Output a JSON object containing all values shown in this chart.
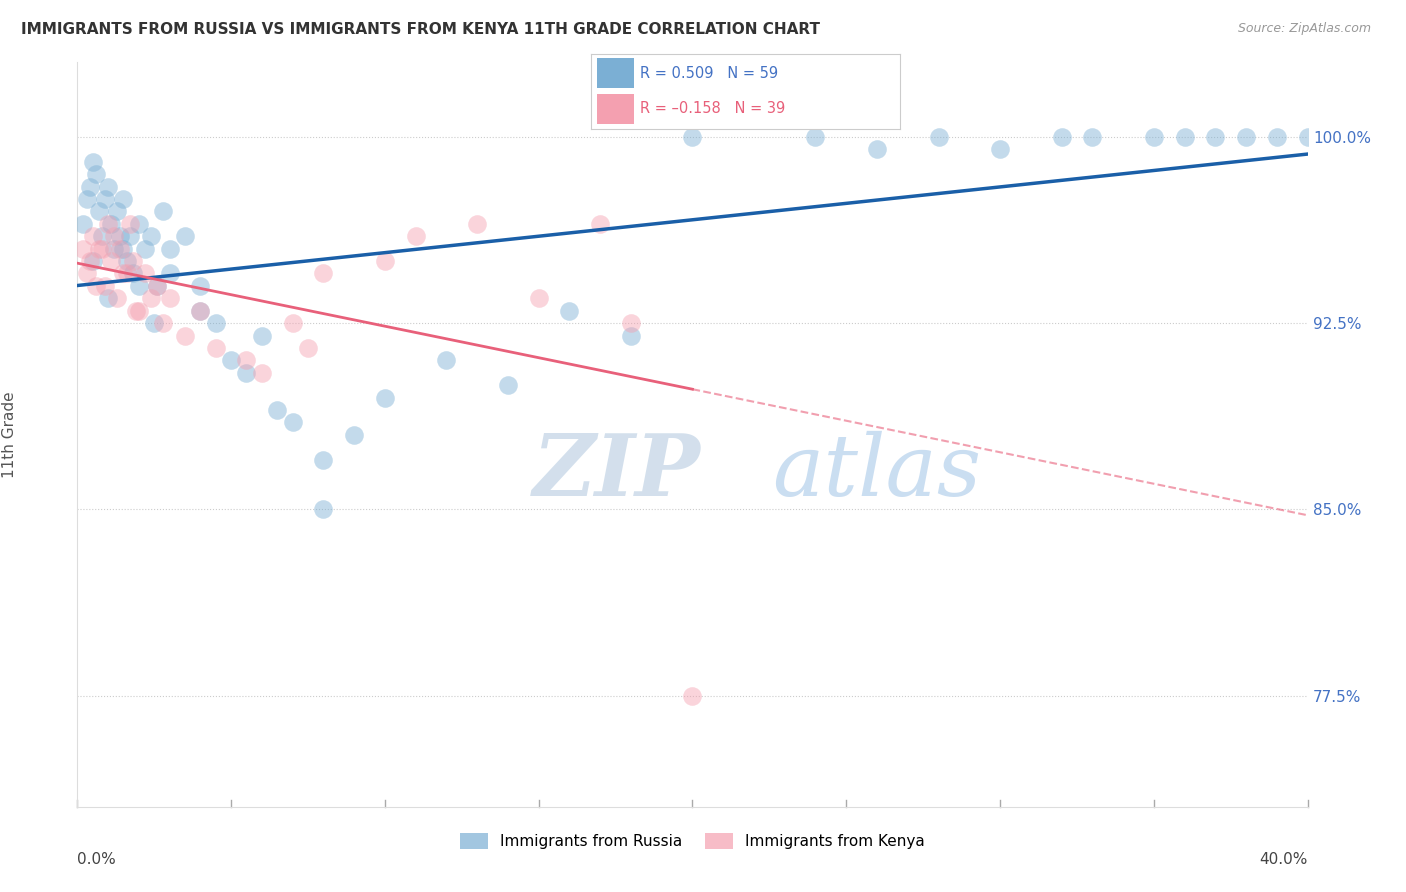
{
  "title": "IMMIGRANTS FROM RUSSIA VS IMMIGRANTS FROM KENYA 11TH GRADE CORRELATION CHART",
  "source": "Source: ZipAtlas.com",
  "ylabel": "11th Grade",
  "y_ticks": [
    77.5,
    85.0,
    92.5,
    100.0
  ],
  "y_tick_labels": [
    "77.5%",
    "85.0%",
    "92.5%",
    "100.0%"
  ],
  "x_range": [
    0.0,
    40.0
  ],
  "y_range": [
    73.0,
    103.0
  ],
  "russia_R": 0.509,
  "russia_N": 59,
  "kenya_R": -0.158,
  "kenya_N": 39,
  "russia_color": "#7bafd4",
  "kenya_color": "#f4a0b0",
  "russia_line_color": "#1a5fa8",
  "kenya_line_color": "#e8607a",
  "russia_x": [
    0.2,
    0.3,
    0.4,
    0.5,
    0.6,
    0.7,
    0.8,
    0.9,
    1.0,
    1.1,
    1.2,
    1.3,
    1.4,
    1.5,
    1.6,
    1.7,
    1.8,
    2.0,
    2.2,
    2.4,
    2.6,
    2.8,
    3.0,
    3.5,
    4.0,
    4.5,
    5.0,
    5.5,
    6.5,
    7.0,
    8.0,
    9.0,
    10.0,
    12.0,
    14.0,
    16.0,
    18.0,
    20.0,
    24.0,
    26.0,
    28.0,
    30.0,
    32.0,
    33.0,
    35.0,
    36.0,
    37.0,
    38.0,
    39.0,
    40.0,
    0.5,
    1.0,
    1.5,
    2.0,
    2.5,
    3.0,
    4.0,
    6.0,
    8.0
  ],
  "russia_y": [
    96.5,
    97.5,
    98.0,
    99.0,
    98.5,
    97.0,
    96.0,
    97.5,
    98.0,
    96.5,
    95.5,
    97.0,
    96.0,
    97.5,
    95.0,
    96.0,
    94.5,
    96.5,
    95.5,
    96.0,
    94.0,
    97.0,
    95.5,
    96.0,
    94.0,
    92.5,
    91.0,
    90.5,
    89.0,
    88.5,
    87.0,
    88.0,
    89.5,
    91.0,
    90.0,
    93.0,
    92.0,
    100.0,
    100.0,
    99.5,
    100.0,
    99.5,
    100.0,
    100.0,
    100.0,
    100.0,
    100.0,
    100.0,
    100.0,
    100.0,
    95.0,
    93.5,
    95.5,
    94.0,
    92.5,
    94.5,
    93.0,
    92.0,
    85.0
  ],
  "kenya_x": [
    0.2,
    0.3,
    0.5,
    0.7,
    0.9,
    1.0,
    1.1,
    1.2,
    1.4,
    1.5,
    1.7,
    1.8,
    2.0,
    2.2,
    2.4,
    2.6,
    3.0,
    3.5,
    4.0,
    4.5,
    5.5,
    6.0,
    7.0,
    7.5,
    8.0,
    10.0,
    11.0,
    13.0,
    15.0,
    17.0,
    18.0,
    20.0,
    0.4,
    0.6,
    0.8,
    1.3,
    1.6,
    1.9,
    2.8
  ],
  "kenya_y": [
    95.5,
    94.5,
    96.0,
    95.5,
    94.0,
    96.5,
    95.0,
    96.0,
    95.5,
    94.5,
    96.5,
    95.0,
    93.0,
    94.5,
    93.5,
    94.0,
    93.5,
    92.0,
    93.0,
    91.5,
    91.0,
    90.5,
    92.5,
    91.5,
    94.5,
    95.0,
    96.0,
    96.5,
    93.5,
    96.5,
    92.5,
    77.5,
    95.0,
    94.0,
    95.5,
    93.5,
    94.5,
    93.0,
    92.5
  ],
  "watermark_zip": "ZIP",
  "watermark_atlas": "atlas",
  "background_color": "#ffffff",
  "grid_color": "#cccccc",
  "legend_russia_text": "R = 0.509   N = 59",
  "legend_kenya_text": "R = –0.158   N = 39",
  "bottom_legend_russia": "Immigrants from Russia",
  "bottom_legend_kenya": "Immigrants from Kenya"
}
